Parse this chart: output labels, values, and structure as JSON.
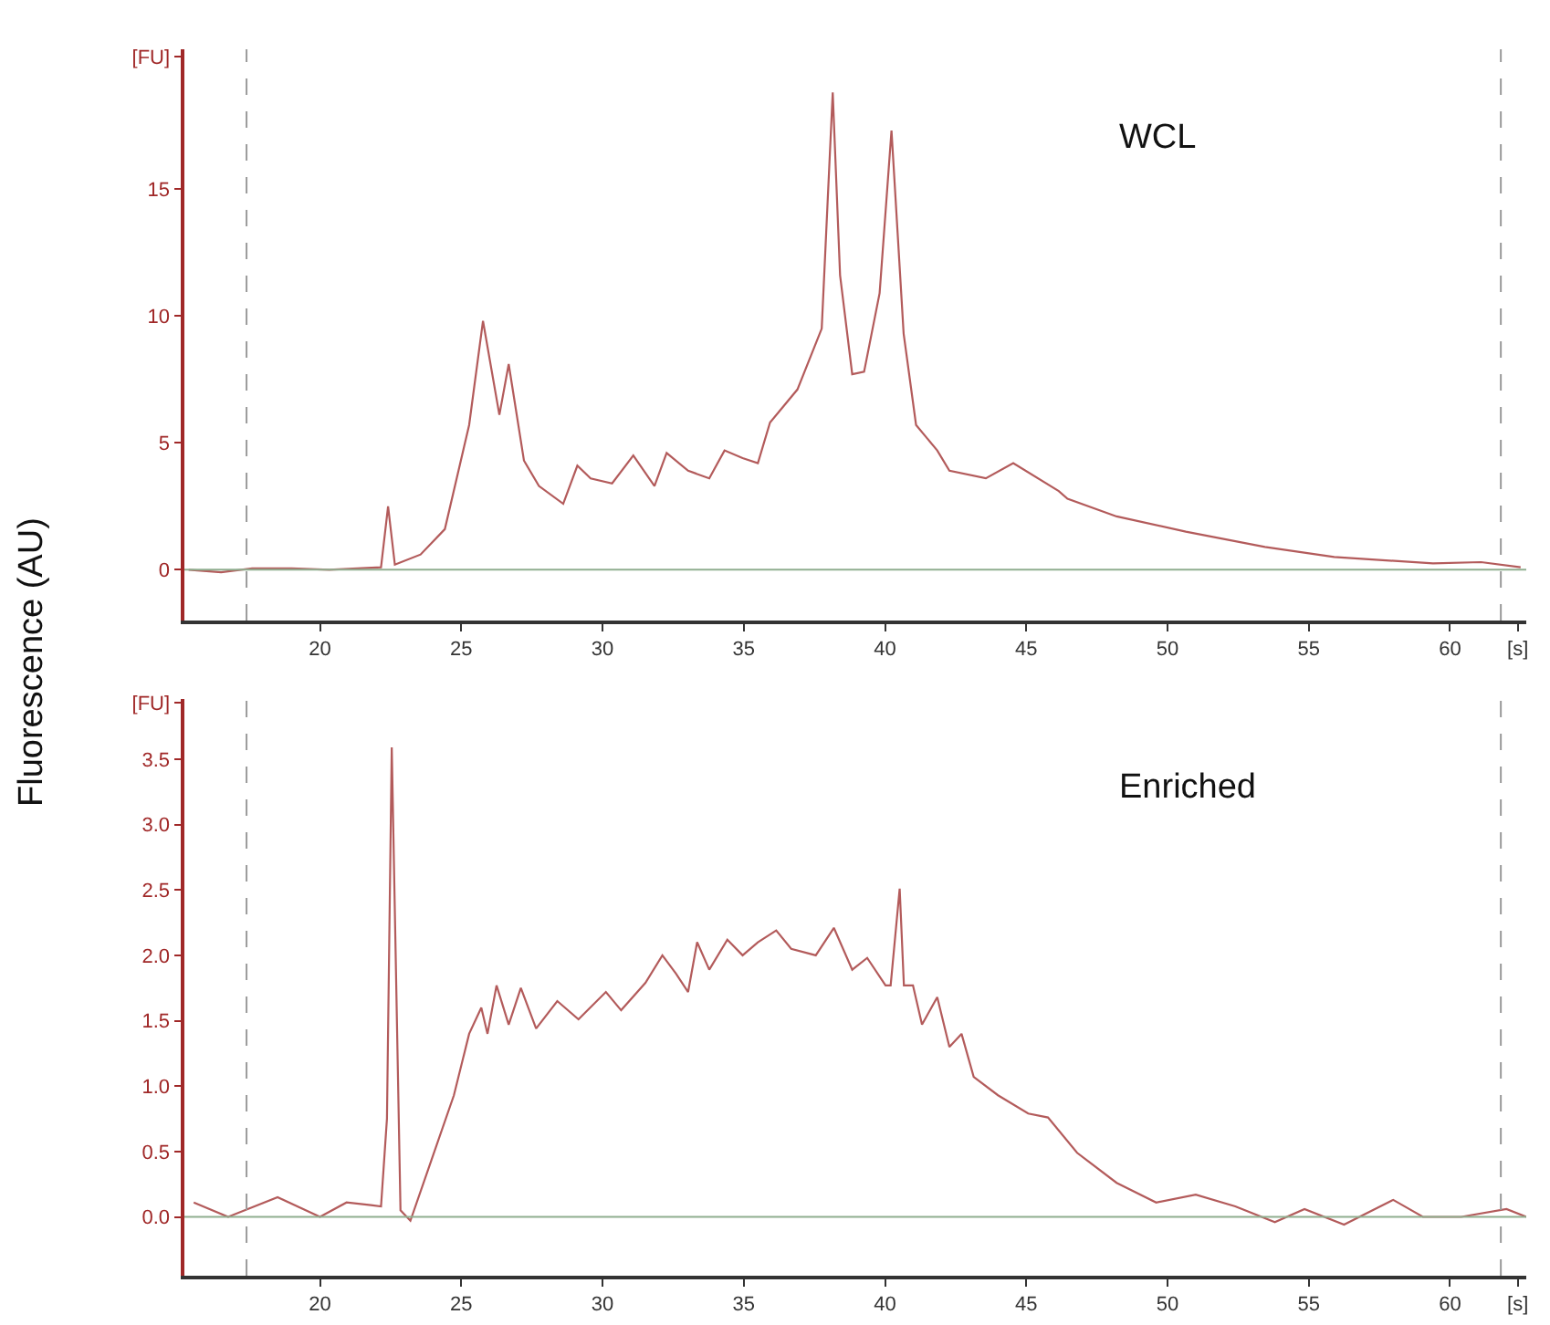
{
  "chart_data": [
    {
      "type": "line",
      "ylabel": "Fluorescence (AU)",
      "annotations": [
        "WCL"
      ],
      "marker": "none",
      "line_style": "solid",
      "xlim": [
        15.2,
        62.7
      ],
      "xticks": [
        20,
        25,
        30,
        35,
        40,
        45,
        50,
        55,
        60,
        {
          "value": 62.4,
          "label": "[s]"
        }
      ],
      "ylim": [
        -2,
        20.5
      ],
      "yticks": [
        0,
        5,
        10,
        15,
        {
          "value": 20.2,
          "label": "[FU]"
        }
      ],
      "ref_lines": [
        {
          "axis": "x",
          "value": 17.4,
          "color": "#9a9a9a",
          "line_style": "dashed"
        },
        {
          "axis": "x",
          "value": 61.8,
          "color": "#9a9a9a",
          "line_style": "dashed"
        },
        {
          "axis": "y",
          "value": 0,
          "color": "#8fae8f",
          "line_style": "solid"
        }
      ],
      "series": [
        {
          "color": "#b35b5b",
          "x": [
            15.35,
            16.5,
            17.6,
            19.0,
            20.33,
            22.16,
            22.41,
            22.65,
            23.56,
            24.42,
            25.28,
            25.77,
            26.35,
            26.68,
            27.22,
            27.75,
            28.61,
            29.11,
            29.58,
            30.34,
            31.09,
            31.84,
            32.27,
            33.03,
            33.78,
            34.32,
            34.96,
            35.5,
            35.93,
            36.9,
            37.76,
            38.15,
            38.41,
            38.84,
            39.26,
            39.81,
            40.23,
            40.66,
            41.1,
            41.85,
            42.28,
            43.57,
            44.54,
            46.15,
            46.46,
            48.2,
            50.65,
            53.45,
            55.9,
            59.4,
            61.1,
            62.5
          ],
          "values": [
            0,
            -0.1,
            0.05,
            0.05,
            0,
            0.1,
            2.5,
            0.2,
            0.6,
            1.6,
            5.7,
            9.8,
            6.1,
            8.1,
            4.3,
            3.3,
            2.6,
            4.1,
            3.6,
            3.4,
            4.5,
            3.3,
            4.6,
            3.9,
            3.6,
            4.7,
            4.4,
            4.2,
            5.8,
            7.1,
            9.5,
            18.8,
            11.6,
            7.7,
            7.8,
            10.9,
            17.3,
            9.3,
            5.7,
            4.7,
            3.9,
            3.6,
            4.2,
            3.1,
            2.8,
            2.1,
            1.5,
            0.9,
            0.5,
            0.25,
            0.3,
            0.1
          ]
        }
      ]
    },
    {
      "type": "line",
      "annotations": [
        "Enriched"
      ],
      "marker": "none",
      "line_style": "solid",
      "xlim": [
        15.2,
        62.7
      ],
      "xticks": [
        20,
        25,
        30,
        35,
        40,
        45,
        50,
        55,
        60,
        {
          "value": 62.4,
          "label": "[s]"
        }
      ],
      "ylim": [
        -0.45,
        3.96
      ],
      "yticks": [
        {
          "value": 0,
          "label": "0.0"
        },
        0.5,
        {
          "value": 1,
          "label": "1.0"
        },
        1.5,
        {
          "value": 2,
          "label": "2.0"
        },
        2.5,
        {
          "value": 3,
          "label": "3.0"
        },
        3.5,
        {
          "value": 3.93,
          "label": "[FU]"
        }
      ],
      "ref_lines": [
        {
          "axis": "x",
          "value": 17.4,
          "color": "#9a9a9a",
          "line_style": "dashed"
        },
        {
          "axis": "x",
          "value": 61.8,
          "color": "#9a9a9a",
          "line_style": "dashed"
        },
        {
          "axis": "y",
          "value": 0,
          "color": "#8fae8f",
          "line_style": "solid"
        }
      ],
      "series": [
        {
          "color": "#b35b5b",
          "x": [
            15.53,
            16.75,
            18.5,
            20.0,
            20.94,
            21.8,
            22.16,
            22.37,
            22.54,
            22.85,
            23.2,
            24.74,
            25.28,
            25.71,
            25.93,
            26.25,
            26.68,
            27.11,
            27.65,
            28.4,
            29.15,
            30.12,
            30.66,
            31.52,
            32.12,
            32.6,
            33.03,
            33.35,
            33.78,
            34.42,
            34.96,
            35.5,
            36.15,
            36.68,
            37.55,
            38.19,
            38.84,
            39.37,
            40.02,
            40.2,
            40.52,
            40.67,
            40.99,
            41.31,
            41.85,
            42.28,
            42.71,
            43.14,
            44.0,
            45.07,
            45.77,
            46.8,
            48.2,
            49.6,
            51.0,
            52.4,
            53.8,
            54.85,
            56.25,
            57.99,
            59.04,
            60.4,
            62.0,
            62.7
          ],
          "values": [
            0.11,
            0,
            0.15,
            0,
            0.11,
            0.09,
            0.08,
            0.75,
            3.59,
            0.05,
            -0.03,
            0.93,
            1.4,
            1.6,
            1.4,
            1.77,
            1.47,
            1.75,
            1.44,
            1.65,
            1.51,
            1.72,
            1.58,
            1.79,
            2.0,
            1.86,
            1.72,
            2.1,
            1.89,
            2.12,
            2.0,
            2.1,
            2.19,
            2.05,
            2.0,
            2.21,
            1.89,
            1.98,
            1.77,
            1.77,
            2.51,
            1.77,
            1.77,
            1.47,
            1.68,
            1.3,
            1.4,
            1.07,
            0.93,
            0.79,
            0.76,
            0.49,
            0.26,
            0.11,
            0.17,
            0.08,
            -0.04,
            0.06,
            -0.06,
            0.13,
            0,
            0,
            0.06,
            0
          ]
        }
      ]
    }
  ]
}
